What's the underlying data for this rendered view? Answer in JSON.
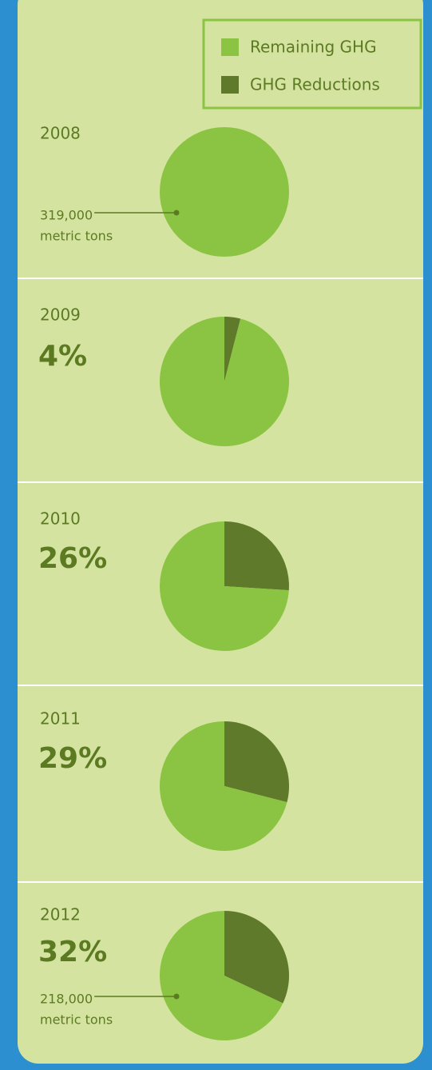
{
  "chart_data": [
    {
      "type": "pie",
      "title": "2008",
      "categories": [
        "Remaining GHG",
        "GHG Reductions"
      ],
      "values": [
        100,
        0
      ],
      "colors": [
        "#8bc443",
        "#5f7a2a"
      ],
      "annotation": [
        "319,000",
        "metric tons"
      ]
    },
    {
      "type": "pie",
      "title": "2009",
      "categories": [
        "Remaining GHG",
        "GHG Reductions"
      ],
      "values": [
        96,
        4
      ],
      "value_labels": [
        null,
        "4%"
      ],
      "colors": [
        "#8bc443",
        "#5f7a2a"
      ]
    },
    {
      "type": "pie",
      "title": "2010",
      "categories": [
        "Remaining GHG",
        "GHG Reductions"
      ],
      "values": [
        74,
        26
      ],
      "value_labels": [
        null,
        "26%"
      ],
      "colors": [
        "#8bc443",
        "#5f7a2a"
      ]
    },
    {
      "type": "pie",
      "title": "2011",
      "categories": [
        "Remaining GHG",
        "GHG Reductions"
      ],
      "values": [
        71,
        29
      ],
      "value_labels": [
        null,
        "29%"
      ],
      "colors": [
        "#8bc443",
        "#5f7a2a"
      ]
    },
    {
      "type": "pie",
      "title": "2012",
      "categories": [
        "Remaining GHG",
        "GHG Reductions"
      ],
      "values": [
        68,
        32
      ],
      "value_labels": [
        null,
        "32%"
      ],
      "colors": [
        "#8bc443",
        "#5f7a2a"
      ],
      "annotation": [
        "218,000",
        "metric tons"
      ]
    }
  ]
}
